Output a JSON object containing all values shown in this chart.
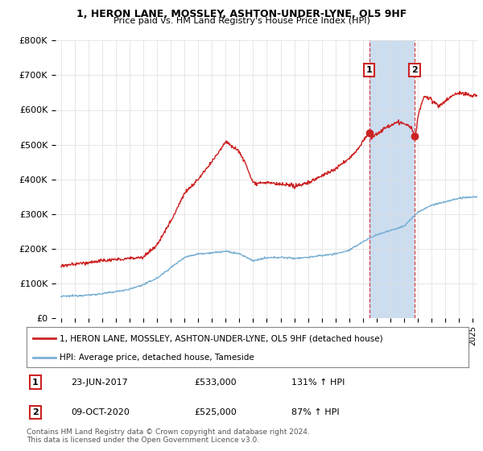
{
  "title1": "1, HERON LANE, MOSSLEY, ASHTON-UNDER-LYNE, OL5 9HF",
  "title2": "Price paid vs. HM Land Registry's House Price Index (HPI)",
  "legend_line1": "1, HERON LANE, MOSSLEY, ASHTON-UNDER-LYNE, OL5 9HF (detached house)",
  "legend_line2": "HPI: Average price, detached house, Tameside",
  "footer": "Contains HM Land Registry data © Crown copyright and database right 2024.\nThis data is licensed under the Open Government Licence v3.0.",
  "sale1_label": "1",
  "sale1_date": "23-JUN-2017",
  "sale1_price": "£533,000",
  "sale1_hpi": "131% ↑ HPI",
  "sale1_year": 2017.47,
  "sale1_value": 533000,
  "sale2_label": "2",
  "sale2_date": "09-OCT-2020",
  "sale2_price": "£525,000",
  "sale2_hpi": "87% ↑ HPI",
  "sale2_year": 2020.77,
  "sale2_value": 525000,
  "ylim": [
    0,
    800000
  ],
  "yticks": [
    0,
    100000,
    200000,
    300000,
    400000,
    500000,
    600000,
    700000,
    800000
  ],
  "ytick_labels": [
    "£0",
    "£100K",
    "£200K",
    "£300K",
    "£400K",
    "£500K",
    "£600K",
    "£700K",
    "£800K"
  ],
  "xlim_start": 1994.6,
  "xlim_end": 2025.4,
  "hpi_color": "#7ab0d4",
  "price_color": "#cc2222",
  "shade_color": "#ccddf0",
  "grid_color": "#dddddd",
  "bg_color": "#ffffff"
}
